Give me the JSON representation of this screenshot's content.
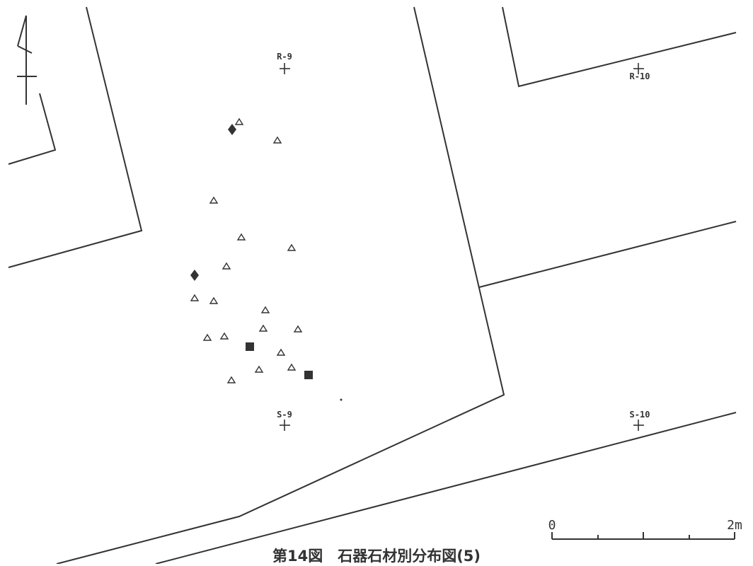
{
  "figure": {
    "caption": "第14図　石器石材別分布図(5)"
  },
  "grid_points": [
    {
      "label": "R-9"
    },
    {
      "label": "R-10"
    },
    {
      "label": "S-9"
    },
    {
      "label": "S-10"
    }
  ],
  "scale_bar": {
    "start_label": "0",
    "end_label": "2m"
  },
  "colors": {
    "ink": "#333333",
    "background": "#ffffff"
  },
  "symbols": {
    "open_triangle": "triangle-marker",
    "solid_diamond": "diamond-marker",
    "solid_square": "square-marker",
    "north_arrow": "north-arrow-icon"
  }
}
